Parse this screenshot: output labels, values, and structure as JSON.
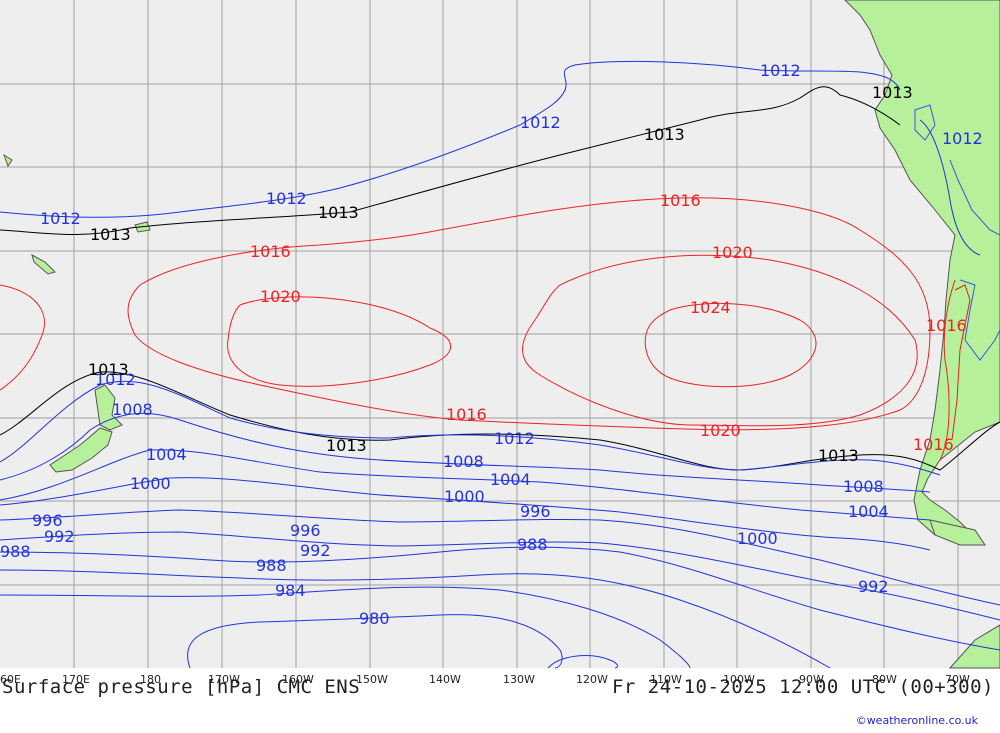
{
  "map": {
    "title": "Surface pressure [hPa] CMC ENS",
    "valid_time": "Fr 24-10-2025 12:00 UTC (00+300)",
    "credit": "©weatheronline.co.uk",
    "lon_labels": [
      "60E",
      "170E",
      "180",
      "170W",
      "160W",
      "150W",
      "140W",
      "130W",
      "120W",
      "110W",
      "100W",
      "90W",
      "80W",
      "70W"
    ],
    "colors": {
      "ocean": "#eeeeee",
      "land": "#b7f09a",
      "grid": "#9a9a9a",
      "low": "#2233dd",
      "mid": "#000000",
      "high": "#ee2222",
      "coast": "#444444"
    },
    "isobars": {
      "l1012a": "1012",
      "l1012b": "1012",
      "l1012c": "1012",
      "l1012d": "1012",
      "l1012e": "1012",
      "l1012f": "1012",
      "l1013a": "1013",
      "l1013b": "1013",
      "l1013c": "1013",
      "l1013d": "1013",
      "l1013e": "1013",
      "l1013f": "1013",
      "l1016a": "1016",
      "l1016b": "1016",
      "l1016c": "1016",
      "l1016d": "1016",
      "l1016e": "1016",
      "l1020a": "1020",
      "l1020b": "1020",
      "l1020c": "1020",
      "l1024": "1024",
      "l1008a": "1008",
      "l1008b": "1008",
      "l1008c": "1008",
      "l1004a": "1004",
      "l1004b": "1004",
      "l1004c": "1004",
      "l1000a": "1000",
      "l1000b": "1000",
      "l1000c": "1000",
      "l996a": "996",
      "l996b": "996",
      "l996c": "996",
      "l992a": "992",
      "l992b": "992",
      "l992c": "992",
      "l988a": "988",
      "l988b": "988",
      "l988c": "988",
      "l984": "984",
      "l980": "980"
    }
  }
}
